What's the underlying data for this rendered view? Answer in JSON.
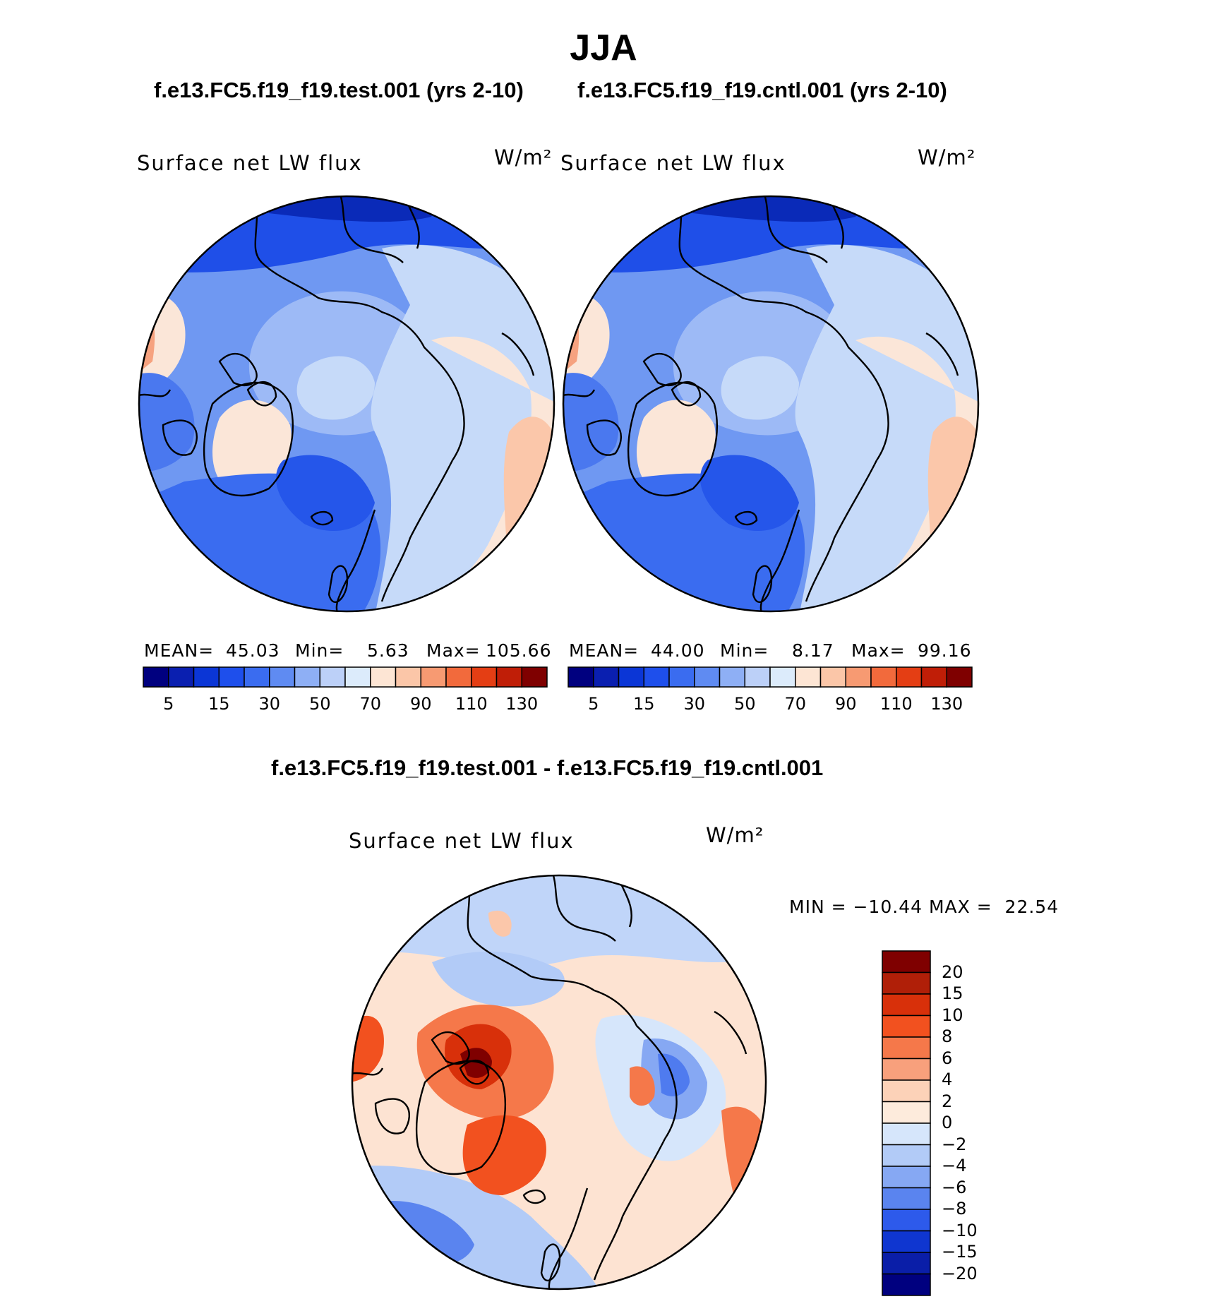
{
  "title": "JJA",
  "cases": {
    "test_title": "f.e13.FC5.f19_f19.test.001 (yrs 2-10)",
    "cntl_title": "f.e13.FC5.f19_f19.cntl.001 (yrs 2-10)",
    "diff_title": "f.e13.FC5.f19_f19.test.001 - f.e13.FC5.f19_f19.cntl.001"
  },
  "panels": {
    "test": {
      "label": "Surface net LW flux",
      "units": "W/m²",
      "mean_label": "MEAN=",
      "mean": "45.03",
      "min_label": "Min=",
      "min": "5.63",
      "max_label": "Max=",
      "max": "105.66"
    },
    "cntl": {
      "label": "Surface net LW flux",
      "units": "W/m²",
      "mean_label": "MEAN=",
      "mean": "44.00",
      "min_label": "Min=",
      "min": "8.17",
      "max_label": "Max=",
      "max": "99.16"
    },
    "diff": {
      "label": "Surface net LW flux",
      "units": "W/m²",
      "minmax": "MIN = −10.44 MAX =  22.54"
    }
  },
  "chart_data": [
    {
      "type": "heatmap",
      "title": "f.e13.FC5.f19_f19.test.001 (yrs 2-10)",
      "projection": "north polar stereographic",
      "variable": "Surface net LW flux",
      "units": "W/m2",
      "mean": 45.03,
      "min": 5.63,
      "max": 105.66,
      "colorbar": {
        "levels": [
          5,
          10,
          15,
          20,
          30,
          40,
          50,
          60,
          70,
          80,
          90,
          100,
          110,
          120,
          130
        ],
        "tick_labels": [
          "5",
          "15",
          "30",
          "50",
          "70",
          "90",
          "110",
          "130"
        ],
        "colors": [
          "#00007f",
          "#0a1fb0",
          "#0b36d6",
          "#1e4fec",
          "#3a6cf0",
          "#5f8bf2",
          "#8eaff5",
          "#bcd0f8",
          "#dcebfb",
          "#fde5d4",
          "#fbc6a8",
          "#f79a72",
          "#f26a3c",
          "#e43e14",
          "#c01e07",
          "#7f0000"
        ]
      }
    },
    {
      "type": "heatmap",
      "title": "f.e13.FC5.f19_f19.cntl.001 (yrs 2-10)",
      "projection": "north polar stereographic",
      "variable": "Surface net LW flux",
      "units": "W/m2",
      "mean": 44.0,
      "min": 8.17,
      "max": 99.16,
      "colorbar": {
        "levels": [
          5,
          10,
          15,
          20,
          30,
          40,
          50,
          60,
          70,
          80,
          90,
          100,
          110,
          120,
          130
        ],
        "tick_labels": [
          "5",
          "15",
          "30",
          "50",
          "70",
          "90",
          "110",
          "130"
        ],
        "colors": [
          "#00007f",
          "#0a1fb0",
          "#0b36d6",
          "#1e4fec",
          "#3a6cf0",
          "#5f8bf2",
          "#8eaff5",
          "#bcd0f8",
          "#dcebfb",
          "#fde5d4",
          "#fbc6a8",
          "#f79a72",
          "#f26a3c",
          "#e43e14",
          "#c01e07",
          "#7f0000"
        ]
      }
    },
    {
      "type": "heatmap",
      "title": "f.e13.FC5.f19_f19.test.001 - f.e13.FC5.f19_f19.cntl.001",
      "projection": "north polar stereographic",
      "variable": "Surface net LW flux",
      "units": "W/m2",
      "min": -10.44,
      "max": 22.54,
      "colorbar": {
        "levels": [
          20,
          15,
          10,
          8,
          6,
          4,
          2,
          0,
          -2,
          -4,
          -6,
          -8,
          -10,
          -15,
          -20
        ],
        "tick_labels": [
          "20",
          "15",
          "10",
          "8",
          "6",
          "4",
          "2",
          "0",
          "−2",
          "−4",
          "−6",
          "−8",
          "−10",
          "−15",
          "−20"
        ],
        "colors": [
          "#7f0000",
          "#b01f08",
          "#d8300a",
          "#f2511f",
          "#f5784a",
          "#f8a07c",
          "#fcd2b8",
          "#fdebdc",
          "#d6e6fb",
          "#b2cbf7",
          "#86a8f3",
          "#5a84ef",
          "#2d5aeb",
          "#0f36d0",
          "#0a1ea8",
          "#00007f"
        ]
      }
    }
  ]
}
